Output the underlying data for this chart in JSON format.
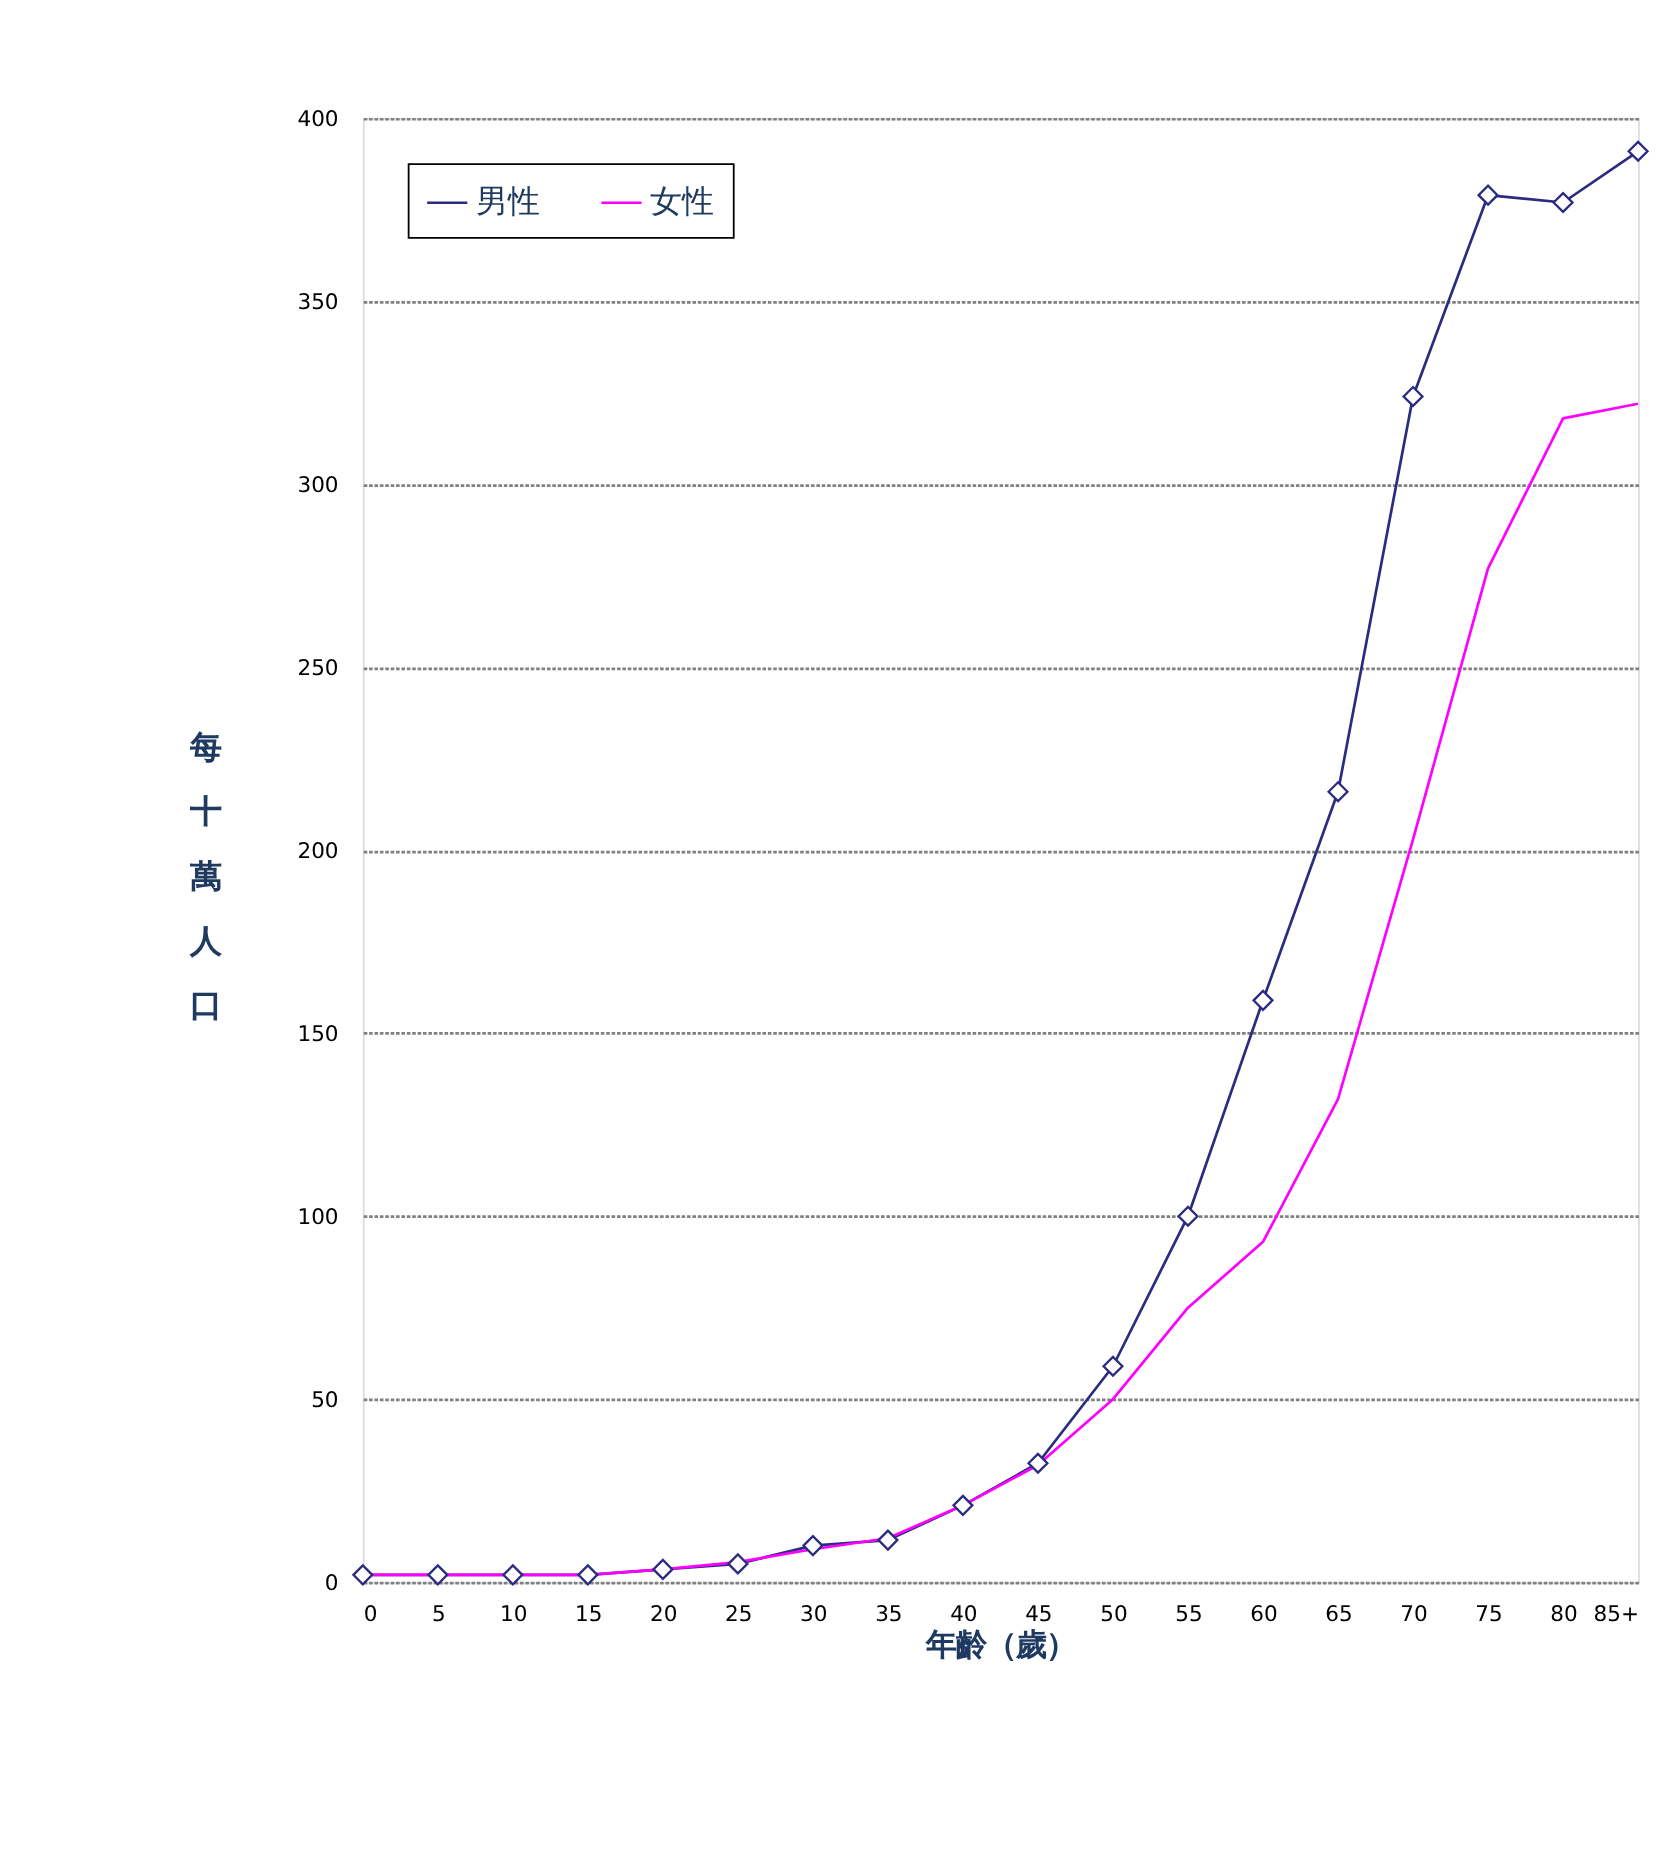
{
  "chart_data": {
    "type": "line",
    "xlabel": "年齡（歲）",
    "ylabel": "每十萬人口",
    "categories": [
      "0",
      "5",
      "10",
      "15",
      "20",
      "25",
      "30",
      "35",
      "40",
      "45",
      "50",
      "55",
      "60",
      "65",
      "70",
      "75",
      "80",
      "85+"
    ],
    "series": [
      {
        "name": "男性",
        "color": "#2b2b80",
        "marker": "diamond",
        "values": [
          2,
          2,
          2,
          2,
          3.5,
          5,
          10,
          11.5,
          21,
          32.5,
          59,
          100,
          159,
          216,
          324,
          379,
          377,
          391
        ]
      },
      {
        "name": "女性",
        "color": "#ff00ff",
        "marker": "none",
        "values": [
          2,
          2,
          2,
          2,
          3.5,
          5.5,
          9,
          12,
          21,
          32,
          50,
          75,
          93,
          132,
          203,
          277,
          318,
          322
        ]
      }
    ],
    "ylim": [
      0,
      400
    ],
    "yticks": [
      0,
      50,
      100,
      150,
      200,
      250,
      300,
      350,
      400
    ],
    "grid": "y",
    "legend": "top left",
    "line_style": "solid"
  }
}
